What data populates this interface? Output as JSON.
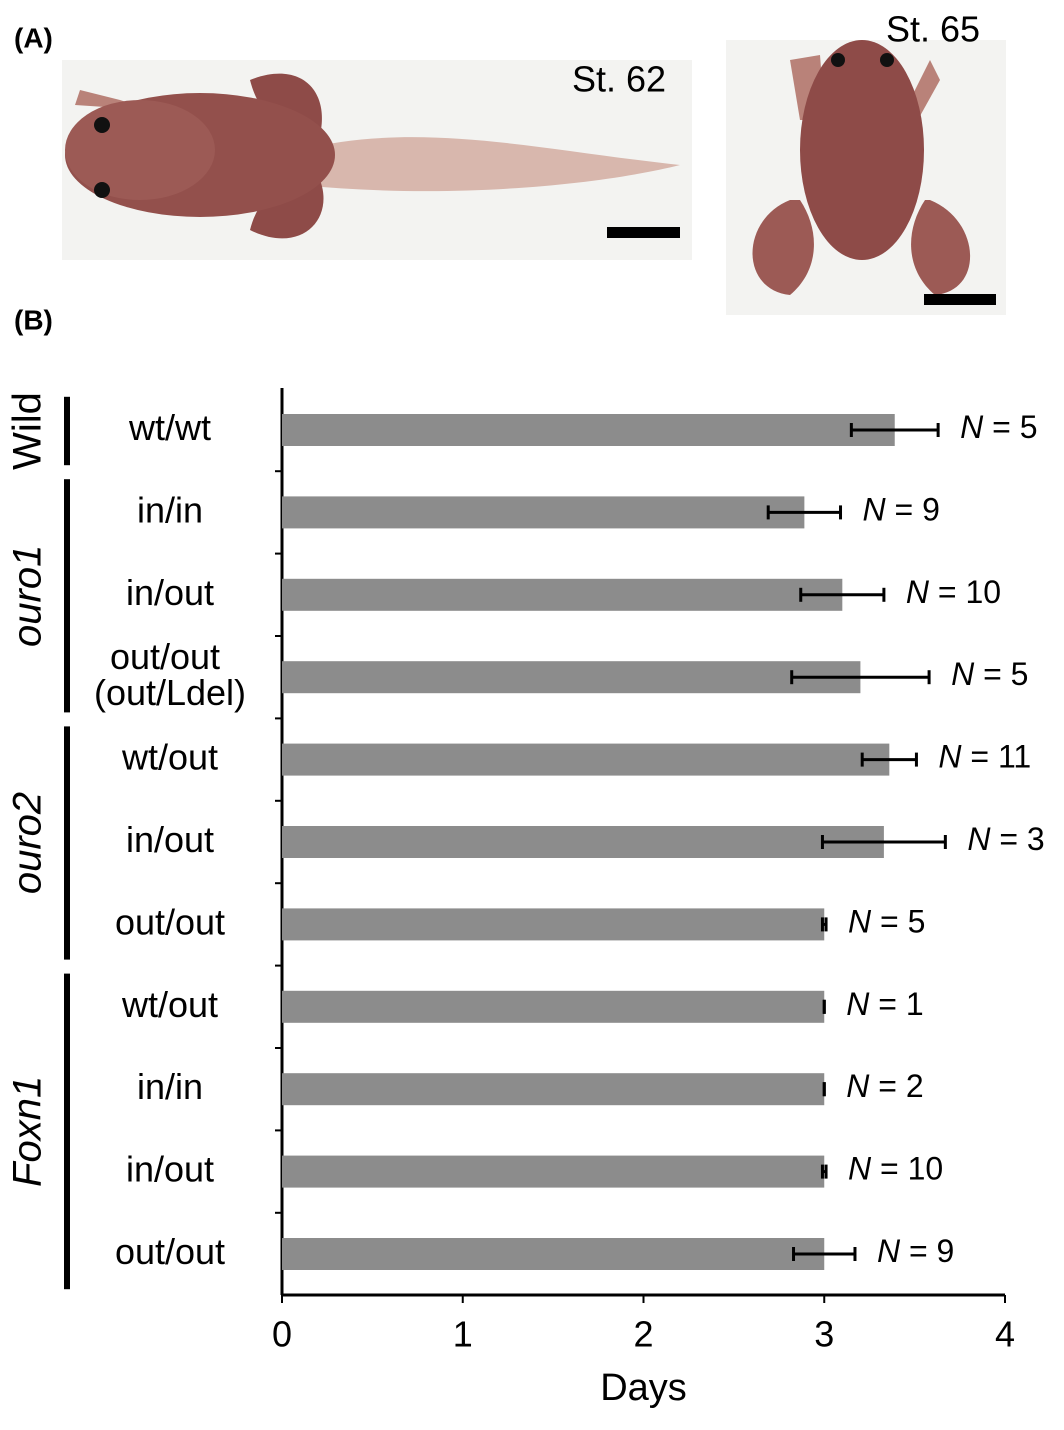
{
  "panel_a": {
    "label": "(A)",
    "photos": [
      {
        "caption": "St. 62"
      },
      {
        "caption": "St. 65"
      }
    ]
  },
  "chart_data": {
    "type": "bar",
    "orientation": "horizontal",
    "panel_label": "(B)",
    "xlabel": "Days",
    "color": "#8c8c8c",
    "error_color": "#000000",
    "xlim": [
      0,
      4
    ],
    "xticks": [
      0,
      1,
      2,
      3,
      4
    ],
    "groups": [
      {
        "name": "Wild",
        "italic": false,
        "categories": [
          "wt/wt"
        ],
        "values": [
          3.39
        ],
        "errors": [
          0.24
        ],
        "labels": [
          "N = 5"
        ]
      },
      {
        "name": "ouro1",
        "italic": true,
        "categories": [
          "in/in",
          "in/out",
          "out/out\n(out/Ldel)"
        ],
        "values": [
          2.89,
          3.1,
          3.2
        ],
        "errors": [
          0.2,
          0.23,
          0.38
        ],
        "labels": [
          "N = 9",
          "N = 10",
          "N = 5"
        ]
      },
      {
        "name": "ouro2",
        "italic": true,
        "categories": [
          "wt/out",
          "in/out",
          "out/out"
        ],
        "values": [
          3.36,
          3.33,
          3.0
        ],
        "errors": [
          0.15,
          0.34,
          0.01
        ],
        "labels": [
          "N = 11",
          "N = 3",
          "N = 5"
        ]
      },
      {
        "name": "Foxn1",
        "italic": true,
        "categories": [
          "wt/out",
          "in/in",
          "in/out",
          "out/out"
        ],
        "values": [
          3.0,
          3.0,
          3.0,
          3.0
        ],
        "errors": [
          0,
          0,
          0.01,
          0.17
        ],
        "labels": [
          "N = 1",
          "N = 2",
          "N = 10",
          "N = 9"
        ]
      }
    ]
  }
}
